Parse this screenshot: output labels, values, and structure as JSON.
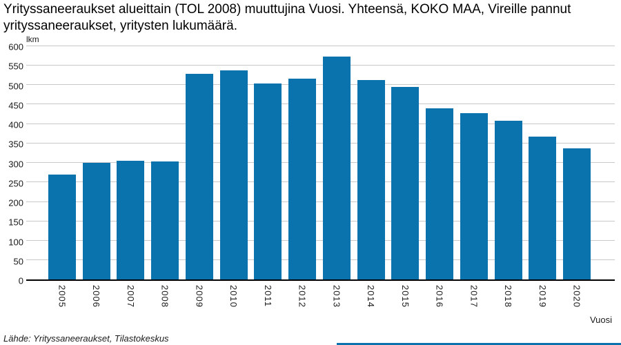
{
  "title": "Yrityssaneeraukset alueittain (TOL 2008) muuttujina Vuosi. Yhteensä, KOKO MAA, Vireille pannut yrityssaneeraukset, yritysten lukumäärä.",
  "chart_data": {
    "type": "bar",
    "categories": [
      "2005",
      "2006",
      "2007",
      "2008",
      "2009",
      "2010",
      "2011",
      "2012",
      "2013",
      "2014",
      "2015",
      "2016",
      "2017",
      "2018",
      "2019",
      "2020"
    ],
    "values": [
      269,
      300,
      305,
      302,
      528,
      536,
      502,
      515,
      572,
      512,
      494,
      439,
      426,
      407,
      366,
      337
    ],
    "title": "Yrityssaneeraukset alueittain (TOL 2008) muuttujina Vuosi. Yhteensä, KOKO MAA, Vireille pannut yrityssaneeraukset, yritysten lukumäärä.",
    "xlabel": "Vuosi",
    "ylabel": "lkm",
    "ylim": [
      0,
      600
    ],
    "yticks": [
      0,
      50,
      100,
      150,
      200,
      250,
      300,
      350,
      400,
      450,
      500,
      550,
      600
    ],
    "grid": true,
    "legend": "none",
    "colors": {
      "bar": "#0a73ad",
      "gridline": "#c8c8c8",
      "axis": "#000000",
      "text": "#1a1a1a"
    }
  },
  "footer": {
    "source": "Lähde: Yrityssaneeraukset, Tilastokeskus"
  }
}
